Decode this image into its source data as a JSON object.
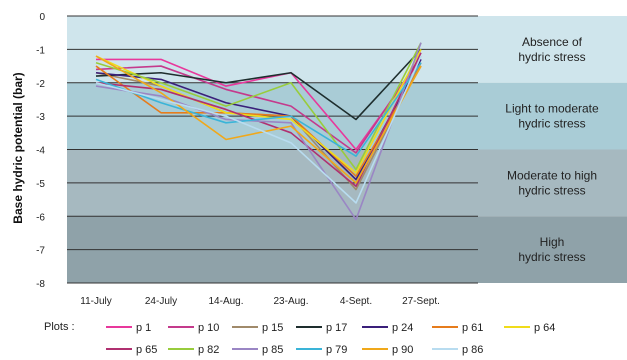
{
  "chart_data": {
    "type": "line",
    "ylabel": "Base hydric potential (bar)",
    "ylim": [
      -8,
      0
    ],
    "yticks": [
      "0",
      "-1",
      "-2",
      "-3",
      "-4",
      "-5",
      "-6",
      "-7",
      "-8"
    ],
    "categories": [
      "11-July",
      "24-July",
      "14-Aug.",
      "23-Aug.",
      "4-Sept.",
      "27-Sept."
    ],
    "legend_title": "Plots :",
    "bands": [
      {
        "from": 0,
        "to": -2,
        "color": "#cfe5ec",
        "label_lines": [
          "Absence of",
          "hydric stress"
        ]
      },
      {
        "from": -2,
        "to": -4,
        "color": "#a9ccd6",
        "label_lines": [
          "Light to moderate",
          "hydric stress"
        ]
      },
      {
        "from": -4,
        "to": -6,
        "color": "#a6b9c0",
        "label_lines": [
          "Moderate to high",
          "hydric stress"
        ]
      },
      {
        "from": -6,
        "to": -8,
        "color": "#8fa2a9",
        "label_lines": [
          "High",
          "hydric stress"
        ]
      }
    ],
    "series": [
      {
        "name": "p 1",
        "color": "#e8389c",
        "values": [
          -1.3,
          -1.3,
          -2.1,
          -1.7,
          -4.0,
          -1.3
        ]
      },
      {
        "name": "p 10",
        "color": "#c43a8c",
        "values": [
          -1.6,
          -1.5,
          -2.2,
          -2.7,
          -4.1,
          -1.2
        ]
      },
      {
        "name": "p 15",
        "color": "#a08a6a",
        "values": [
          -1.7,
          -2.1,
          -2.9,
          -3.0,
          -5.2,
          -1.4
        ]
      },
      {
        "name": "p 17",
        "color": "#1e2e2e",
        "values": [
          -1.8,
          -1.7,
          -2.0,
          -1.7,
          -3.1,
          -1.0
        ]
      },
      {
        "name": "p 24",
        "color": "#3a1f7a",
        "values": [
          -1.7,
          -1.9,
          -2.6,
          -3.0,
          -4.9,
          -1.3
        ]
      },
      {
        "name": "p 61",
        "color": "#e67c1c",
        "values": [
          -1.5,
          -2.9,
          -2.9,
          -3.0,
          -4.8,
          -1.5
        ]
      },
      {
        "name": "p 64",
        "color": "#f0dc1a",
        "values": [
          -1.2,
          -2.1,
          -2.9,
          -3.1,
          -4.7,
          -1.0
        ]
      },
      {
        "name": "p 65",
        "color": "#b03070",
        "values": [
          -2.0,
          -2.2,
          -2.8,
          -3.5,
          -5.1,
          -1.1
        ]
      },
      {
        "name": "p 82",
        "color": "#98cc3c",
        "values": [
          -1.4,
          -2.0,
          -2.7,
          -2.0,
          -4.6,
          -0.8
        ]
      },
      {
        "name": "p 85",
        "color": "#9a86c4",
        "values": [
          -2.1,
          -2.4,
          -3.1,
          -3.2,
          -6.1,
          -0.8
        ]
      },
      {
        "name": "p 79",
        "color": "#3ab4d8",
        "values": [
          -1.9,
          -2.6,
          -3.2,
          -3.0,
          -4.2,
          -1.4
        ]
      },
      {
        "name": "p 90",
        "color": "#f0a81a",
        "values": [
          -1.2,
          -2.3,
          -3.7,
          -3.3,
          -5.0,
          -1.5
        ]
      },
      {
        "name": "p 86",
        "color": "#b8dcf0",
        "values": [
          -2.0,
          -2.5,
          -3.0,
          -3.8,
          -5.6,
          -1.2
        ]
      }
    ]
  }
}
